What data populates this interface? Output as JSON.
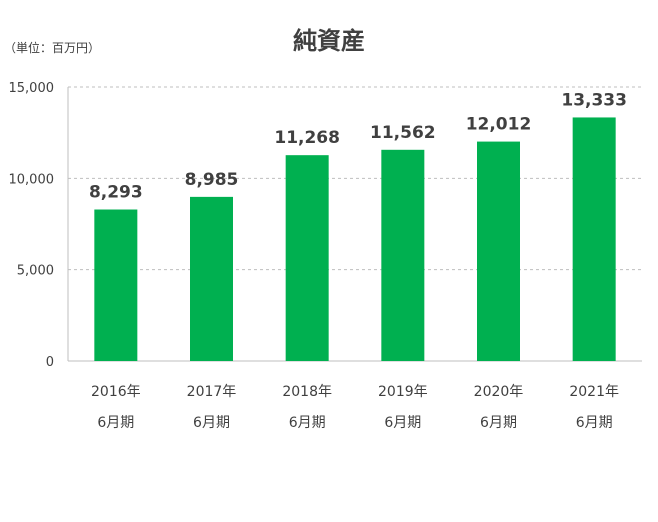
{
  "chart_data": {
    "type": "bar",
    "title": "純資産",
    "unit_label": "（単位：百万円）",
    "categories": [
      {
        "year": "2016年",
        "period": "6月期"
      },
      {
        "year": "2017年",
        "period": "6月期"
      },
      {
        "year": "2018年",
        "period": "6月期"
      },
      {
        "year": "2019年",
        "period": "6月期"
      },
      {
        "year": "2020年",
        "period": "6月期"
      },
      {
        "year": "2021年",
        "period": "6月期"
      }
    ],
    "values": [
      8293,
      8985,
      11268,
      11562,
      12012,
      13333
    ],
    "data_labels": [
      "8,293",
      "8,985",
      "11,268",
      "11,562",
      "12,012",
      "13,333"
    ],
    "yticks": [
      {
        "value": 0,
        "label": "0"
      },
      {
        "value": 5000,
        "label": "5,000"
      },
      {
        "value": 10000,
        "label": "10,000"
      },
      {
        "value": 15000,
        "label": "15,000"
      }
    ],
    "ylim": [
      0,
      15000
    ],
    "grid": true,
    "bar_color": "#00b050"
  }
}
